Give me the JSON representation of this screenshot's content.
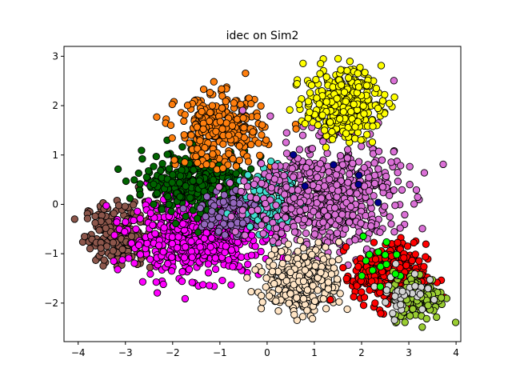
{
  "chart_data": {
    "type": "scatter",
    "title": "idec on Sim2",
    "xlabel": "",
    "ylabel": "",
    "xlim": [
      -4.3,
      4.1
    ],
    "ylim": [
      -2.78,
      3.2
    ],
    "xticks": [
      -4,
      -3,
      -2,
      -1,
      0,
      1,
      2,
      3,
      4
    ],
    "yticks": [
      -2,
      -1,
      0,
      1,
      2,
      3
    ],
    "xtick_labels": [
      "−4",
      "−3",
      "−2",
      "−1",
      "0",
      "1",
      "2",
      "3",
      "4"
    ],
    "ytick_labels": [
      "−2",
      "−1",
      "0",
      "1",
      "2",
      "3"
    ],
    "grid": false,
    "legend": "none",
    "marker_edge_color": "#000000",
    "clusters": [
      {
        "color": "#8c564b",
        "center": [
          -3.1,
          -0.6
        ],
        "spread": [
          0.38,
          0.32
        ],
        "count": 220
      },
      {
        "color": "#ff00ff",
        "center": [
          -1.5,
          -0.65
        ],
        "spread": [
          0.7,
          0.38
        ],
        "count": 650
      },
      {
        "color": "#006400",
        "center": [
          -1.5,
          0.45
        ],
        "spread": [
          0.55,
          0.3
        ],
        "count": 330
      },
      {
        "color": "#ff7f0e",
        "center": [
          -1.0,
          1.5
        ],
        "spread": [
          0.45,
          0.35
        ],
        "count": 330
      },
      {
        "color": "#9467bd",
        "center": [
          -0.7,
          -0.15
        ],
        "spread": [
          0.35,
          0.25
        ],
        "count": 110
      },
      {
        "color": "#40e0d0",
        "center": [
          0.25,
          0.1
        ],
        "spread": [
          0.35,
          0.3
        ],
        "count": 180
      },
      {
        "color": "#da70d6",
        "center": [
          1.25,
          0.15
        ],
        "spread": [
          0.75,
          0.55
        ],
        "count": 650
      },
      {
        "color": "#ffff00",
        "center": [
          1.6,
          2.05
        ],
        "spread": [
          0.4,
          0.35
        ],
        "count": 330
      },
      {
        "color": "#ffe4c4",
        "center": [
          0.75,
          -1.55
        ],
        "spread": [
          0.4,
          0.33
        ],
        "count": 330
      },
      {
        "color": "#ff0000",
        "center": [
          2.6,
          -1.45
        ],
        "spread": [
          0.38,
          0.32
        ],
        "count": 330
      },
      {
        "color": "#9acd32",
        "center": [
          3.2,
          -1.85
        ],
        "spread": [
          0.28,
          0.25
        ],
        "count": 130
      },
      {
        "color": "#d3d3d3",
        "center": [
          2.85,
          -1.75
        ],
        "spread": [
          0.25,
          0.22
        ],
        "count": 40
      },
      {
        "color": "#00ff00",
        "center": [
          2.35,
          -1.2
        ],
        "spread": [
          0.3,
          0.3
        ],
        "count": 14
      },
      {
        "color": "#00008b",
        "center": [
          1.4,
          0.35
        ],
        "spread": [
          0.6,
          0.3
        ],
        "count": 6
      }
    ]
  }
}
